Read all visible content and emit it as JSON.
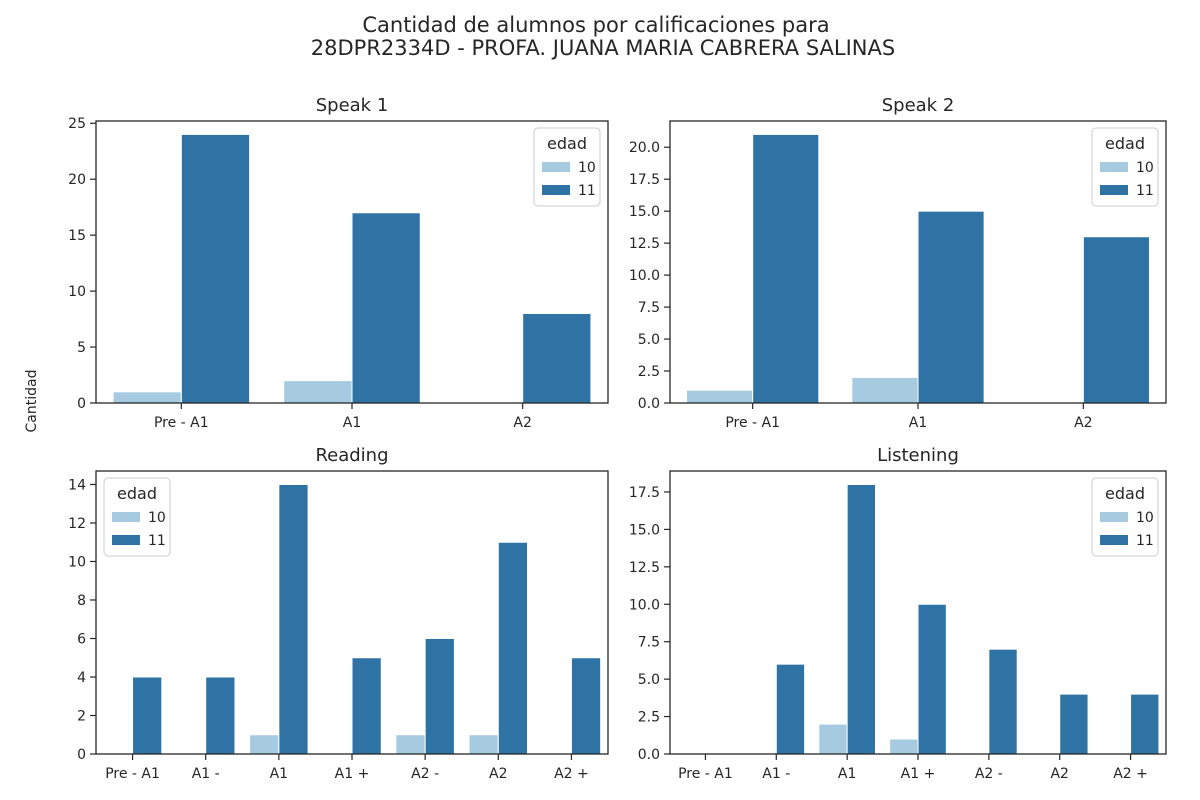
{
  "colors": {
    "age_10": "#a6cbe0",
    "age_11": "#2f73a4",
    "axis": "#262626"
  },
  "figure": {
    "title_line1": "Cantidad de alumnos por calificaciones para",
    "title_line2": "28DPR2334D - PROFA. JUANA MARIA CABRERA SALINAS",
    "ylabel": "Cantidad"
  },
  "chart_data": [
    {
      "type": "bar",
      "title": "Speak 1",
      "categories": [
        "Pre - A1",
        "A1",
        "A2"
      ],
      "series": [
        {
          "name": "10",
          "values": [
            1,
            2,
            0
          ]
        },
        {
          "name": "11",
          "values": [
            24,
            17,
            8
          ]
        }
      ],
      "ylim": [
        0,
        25.2
      ],
      "yticks": [
        0,
        5,
        10,
        15,
        20,
        25
      ],
      "ytick_labels": [
        "0",
        "5",
        "10",
        "15",
        "20",
        "25"
      ],
      "legend": {
        "title": "edad",
        "position": "top-right"
      }
    },
    {
      "type": "bar",
      "title": "Speak 2",
      "categories": [
        "Pre - A1",
        "A1",
        "A2"
      ],
      "series": [
        {
          "name": "10",
          "values": [
            1,
            2,
            0
          ]
        },
        {
          "name": "11",
          "values": [
            21,
            15,
            13
          ]
        }
      ],
      "ylim": [
        0,
        22.05
      ],
      "yticks": [
        0,
        2.5,
        5,
        7.5,
        10,
        12.5,
        15,
        17.5,
        20
      ],
      "ytick_labels": [
        "0.0",
        "2.5",
        "5.0",
        "7.5",
        "10.0",
        "12.5",
        "15.0",
        "17.5",
        "20.0"
      ],
      "legend": {
        "title": "edad",
        "position": "top-right"
      }
    },
    {
      "type": "bar",
      "title": "Reading",
      "categories": [
        "Pre - A1",
        "A1 -",
        "A1",
        "A1 +",
        "A2 -",
        "A2",
        "A2 +"
      ],
      "series": [
        {
          "name": "10",
          "values": [
            0,
            0,
            1,
            0,
            1,
            1,
            0
          ]
        },
        {
          "name": "11",
          "values": [
            4,
            4,
            14,
            5,
            6,
            11,
            5
          ]
        }
      ],
      "ylim": [
        0,
        14.7
      ],
      "yticks": [
        0,
        2,
        4,
        6,
        8,
        10,
        12,
        14
      ],
      "ytick_labels": [
        "0",
        "2",
        "4",
        "6",
        "8",
        "10",
        "12",
        "14"
      ],
      "legend": {
        "title": "edad",
        "position": "top-left"
      }
    },
    {
      "type": "bar",
      "title": "Listening",
      "categories": [
        "Pre - A1",
        "A1 -",
        "A1",
        "A1 +",
        "A2 -",
        "A2",
        "A2 +"
      ],
      "series": [
        {
          "name": "10",
          "values": [
            0,
            0,
            2,
            1,
            0,
            0,
            0
          ]
        },
        {
          "name": "11",
          "values": [
            0,
            6,
            18,
            10,
            7,
            4,
            4
          ]
        }
      ],
      "ylim": [
        0,
        18.9
      ],
      "yticks": [
        0,
        2.5,
        5,
        7.5,
        10,
        12.5,
        15,
        17.5
      ],
      "ytick_labels": [
        "0.0",
        "2.5",
        "5.0",
        "7.5",
        "10.0",
        "12.5",
        "15.0",
        "17.5"
      ],
      "legend": {
        "title": "edad",
        "position": "top-right"
      }
    }
  ]
}
